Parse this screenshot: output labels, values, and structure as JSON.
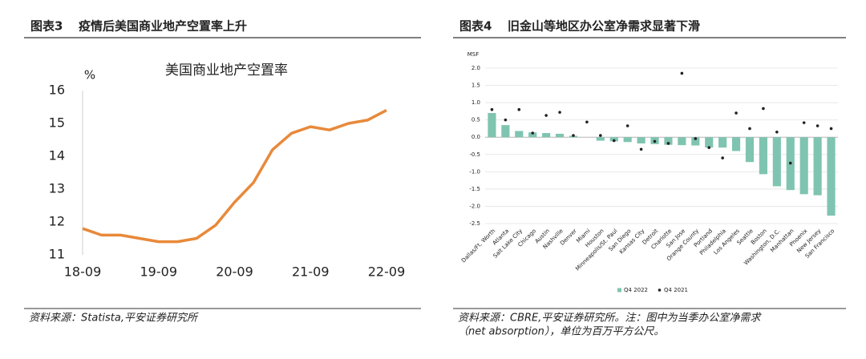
{
  "chart_data": [
    {
      "type": "line",
      "figure_label": "图表3",
      "figure_title": "疫情后美国商业地产空置率上升",
      "title": "美国商业地产空置率",
      "y_label": "%",
      "categories": [
        "18-09",
        null,
        null,
        null,
        "19-09",
        null,
        null,
        null,
        "20-09",
        null,
        null,
        null,
        "21-09",
        null,
        null,
        null,
        "22-09"
      ],
      "series": [
        {
          "name": "美国商业地产空置率",
          "color": "#e8893a",
          "values": [
            11.8,
            11.6,
            11.6,
            11.5,
            11.4,
            11.4,
            11.5,
            11.9,
            12.6,
            13.2,
            14.2,
            14.7,
            14.9,
            14.8,
            15.0,
            15.1,
            15.4
          ]
        }
      ],
      "ylim": [
        11,
        16
      ],
      "yticks": [
        11,
        12,
        13,
        14,
        15,
        16
      ],
      "grid": false,
      "source": [
        "资料来源：Statista,平安证券研究所"
      ]
    },
    {
      "type": "bar",
      "figure_label": "图表4",
      "figure_title": "旧金山等地区办公室净需求显著下滑",
      "y_label": "MSF",
      "categories": [
        "Dallas/Ft. Worth",
        "Atlanta",
        "Salt Lake City",
        "Chicago",
        "Austin",
        "Nashville",
        "Denver",
        "Miami",
        "Houston",
        "Minneapolis/St. Paul",
        "San Diego",
        "Kansas City",
        "Detroit",
        "Charlotte",
        "San Jose",
        "Orange County",
        "Portland",
        "Philadelphia",
        "Los Angeles",
        "Seattle",
        "Boston",
        "Washington, D.C.",
        "Manhattan",
        "Phoenix",
        "New Jersey",
        "San Francisco"
      ],
      "series": [
        {
          "name": "Q4 2022",
          "color": "#7fc4b0",
          "marker": "bar",
          "values": [
            0.7,
            0.35,
            0.18,
            0.14,
            0.12,
            0.1,
            0.04,
            0.0,
            -0.1,
            -0.12,
            -0.14,
            -0.18,
            -0.2,
            -0.22,
            -0.23,
            -0.24,
            -0.3,
            -0.3,
            -0.4,
            -0.72,
            -1.07,
            -1.42,
            -1.53,
            -1.65,
            -1.68,
            -2.27
          ]
        },
        {
          "name": "Q4 2021",
          "color": "#222222",
          "marker": "dot",
          "values": [
            0.8,
            0.5,
            0.8,
            0.12,
            0.63,
            0.72,
            0.05,
            0.44,
            0.05,
            -0.1,
            0.33,
            -0.35,
            -0.12,
            -0.18,
            1.85,
            -0.04,
            -0.3,
            -0.6,
            0.7,
            0.25,
            0.83,
            0.15,
            -0.75,
            0.42,
            0.33,
            0.25
          ]
        }
      ],
      "ylim": [
        -2.5,
        2.0
      ],
      "yticks": [
        {
          "value": -2.5,
          "label": "-2.5"
        },
        {
          "value": -2,
          "label": "-2.0"
        },
        -1.5,
        {
          "value": -1,
          "label": "-1.0"
        },
        -0.5,
        {
          "value": 0,
          "label": "0.0"
        },
        0.5,
        {
          "value": 1,
          "label": "1.0"
        },
        1.5,
        {
          "value": 2,
          "label": "2.0"
        }
      ],
      "grid": true,
      "legend": "bottom",
      "source": [
        "资料来源：CBRE,平安证券研究所。注：图中为当季办公室净需求",
        "（net absorption），单位为百万平方公尺。"
      ]
    }
  ]
}
